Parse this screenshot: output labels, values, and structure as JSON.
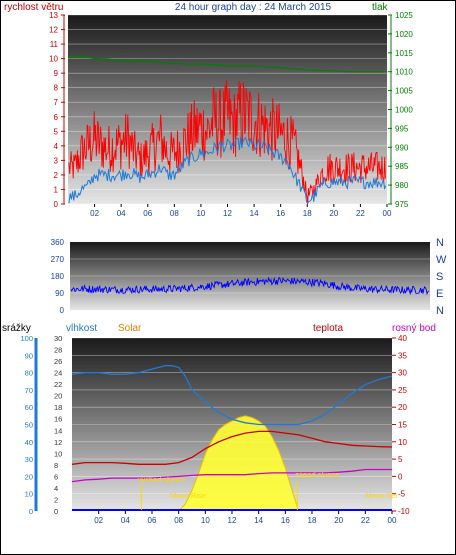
{
  "chart_data": [
    {
      "type": "line",
      "title": "24 hour graph day : 24 March 2015",
      "left_axis_label": "rychlost větru",
      "right_axis_label": "tlak",
      "left_ylim": [
        0,
        13
      ],
      "left_ticks": [
        "0",
        "1",
        "2",
        "3",
        "4",
        "5",
        "6",
        "7",
        "8",
        "9",
        "10",
        "11",
        "12",
        "13"
      ],
      "right_ylim": [
        975,
        1025
      ],
      "right_ticks": [
        "975",
        "980",
        "985",
        "990",
        "995",
        "1000",
        "1005",
        "1010",
        "1015",
        "1020",
        "1025"
      ],
      "x_ticks": [
        "02",
        "04",
        "06",
        "08",
        "10",
        "12",
        "14",
        "16",
        "18",
        "20",
        "22",
        "00"
      ],
      "colors": {
        "gust": "#ff0000",
        "speed": "#1e7ad6",
        "pressure": "#008000",
        "left_axis": "#cc0000",
        "right_axis": "#008000",
        "title": "#1a3fa8"
      },
      "series": [
        {
          "key": "wind_gust",
          "x": [
            0.5,
            1,
            1.5,
            2,
            2.5,
            3,
            3.5,
            4,
            4.5,
            5,
            5.5,
            6,
            6.5,
            7,
            7.5,
            8,
            8.5,
            9,
            9.5,
            10,
            10.5,
            11,
            11.5,
            12,
            12.5,
            13,
            13.5,
            14,
            14.5,
            15,
            15.5,
            16,
            16.5,
            17,
            17.5,
            18,
            18.5,
            19,
            19.5,
            20,
            20.5,
            21,
            21.5,
            22,
            22.5,
            23,
            23.5,
            24
          ],
          "y": [
            2.5,
            3.5,
            4,
            4.5,
            4,
            3.8,
            4,
            4.2,
            4.5,
            3.5,
            3,
            3.5,
            4,
            4.5,
            3.5,
            3.5,
            4,
            4.5,
            5,
            5.3,
            5,
            5.8,
            5.5,
            6,
            5.5,
            6.2,
            6,
            5.8,
            5.5,
            5.2,
            5,
            4.8,
            4.5,
            4,
            2.5,
            0.5,
            1,
            2,
            2.5,
            2.5,
            2.5,
            2.5,
            2.5,
            2.5,
            2.5,
            2.5,
            2.5,
            2.5
          ]
        },
        {
          "key": "wind_speed",
          "x": [
            0.5,
            1,
            1.5,
            2,
            2.5,
            3,
            3.5,
            4,
            4.5,
            5,
            5.5,
            6,
            6.5,
            7,
            7.5,
            8,
            8.5,
            9,
            9.5,
            10,
            10.5,
            11,
            11.5,
            12,
            12.5,
            13,
            13.5,
            14,
            14.5,
            15,
            15.5,
            16,
            16.5,
            17,
            17.5,
            18,
            18.5,
            19,
            19.5,
            20,
            20.5,
            21,
            21.5,
            22,
            22.5,
            23,
            23.5,
            24
          ],
          "y": [
            0.5,
            1,
            1.2,
            2,
            2,
            2,
            2,
            2,
            2.2,
            2,
            1.8,
            2,
            2.2,
            2.5,
            2,
            2,
            2.5,
            3,
            3.2,
            3.5,
            3.5,
            3.8,
            4,
            4,
            4,
            4.2,
            4.2,
            4,
            4,
            3.8,
            3.5,
            3.2,
            3,
            2,
            1.2,
            0.2,
            0.5,
            1.2,
            1.5,
            1.5,
            1.5,
            1.5,
            1.5,
            1.5,
            1.5,
            1.5,
            1.5,
            1.5
          ]
        },
        {
          "key": "pressure",
          "x": [
            0,
            1,
            2,
            3,
            4,
            5,
            6,
            7,
            8,
            9,
            10,
            11,
            12,
            13,
            14,
            15,
            16,
            17,
            18,
            19,
            20,
            21,
            22,
            23,
            24
          ],
          "y": [
            1014,
            1014,
            1013.5,
            1013.3,
            1013,
            1013,
            1012.8,
            1012.5,
            1012.2,
            1012,
            1012,
            1011.8,
            1011.5,
            1011.5,
            1011.5,
            1011.3,
            1011,
            1010.8,
            1010.5,
            1010.3,
            1010.2,
            1010,
            1010,
            1010,
            1010
          ]
        }
      ]
    },
    {
      "type": "scatter",
      "left_ylim": [
        0,
        360
      ],
      "left_ticks": [
        "0",
        "90",
        "180",
        "270",
        "360"
      ],
      "right_labels": [
        "N",
        "W",
        "S",
        "E",
        "N"
      ],
      "x_ticks": [
        "02",
        "04",
        "06",
        "08",
        "10",
        "12",
        "14",
        "16",
        "18",
        "20",
        "22",
        "00"
      ],
      "colors": {
        "direction": "#0000ff",
        "axis": "#1a3fa8"
      },
      "series": [
        {
          "key": "wind_direction",
          "x": [
            0,
            1,
            2,
            3,
            4,
            5,
            6,
            7,
            8,
            9,
            10,
            11,
            12,
            13,
            14,
            15,
            16,
            17,
            18,
            19,
            20,
            21,
            22,
            23,
            24
          ],
          "y": [
            110,
            112,
            110,
            108,
            108,
            110,
            110,
            112,
            118,
            125,
            132,
            140,
            148,
            152,
            155,
            152,
            148,
            140,
            125,
            115,
            110,
            108,
            106,
            106,
            105
          ]
        }
      ]
    },
    {
      "type": "line",
      "legend": [
        "srážky",
        "vlhkost",
        "Solar",
        "teplota",
        "rosný bod"
      ],
      "left_axis_1_ticks": [
        "0",
        "10",
        "20",
        "30",
        "40",
        "50",
        "60",
        "70",
        "80",
        "90",
        "100"
      ],
      "left_axis_2_ticks": [
        "0",
        "2",
        "4",
        "6",
        "8",
        "10",
        "12",
        "14",
        "16",
        "18",
        "20",
        "22",
        "24",
        "26",
        "28",
        "30"
      ],
      "right_ticks": [
        "-10",
        "-5",
        "0",
        "5",
        "10",
        "15",
        "20",
        "25",
        "30",
        "35",
        "40"
      ],
      "left_ylim": [
        0,
        100
      ],
      "right_ylim": [
        -10,
        40
      ],
      "x_ticks": [
        "02",
        "04",
        "06",
        "08",
        "10",
        "12",
        "14",
        "16",
        "18",
        "20",
        "22",
        "00"
      ],
      "annotations": [
        {
          "text": "východ slunce",
          "x": 6.7
        },
        {
          "text": "západ slunce",
          "x": 18.4
        },
        {
          "text": "Moon Rise",
          "x": 8.7
        },
        {
          "text": "Moon Set",
          "x": 23.2
        }
      ],
      "colors": {
        "rain": "#0000ff",
        "humidity": "#1e7ad6",
        "solar": "#e8c000",
        "temperature": "#cc0000",
        "dewpoint": "#cc00cc",
        "sun_fill": "#ffff33"
      },
      "series": [
        {
          "key": "humidity",
          "x": [
            0,
            1,
            2,
            3,
            4,
            5,
            6,
            7,
            7.5,
            8,
            8.5,
            9,
            10,
            11,
            12,
            13,
            14,
            15,
            16,
            17,
            18,
            19,
            20,
            21,
            22,
            23,
            24
          ],
          "y": [
            79,
            80,
            80,
            79,
            79,
            80,
            82,
            84,
            84,
            83,
            78,
            70,
            63,
            57,
            53,
            51,
            50,
            50,
            50,
            50,
            52,
            56,
            62,
            68,
            73,
            76,
            78
          ]
        },
        {
          "key": "temperature",
          "x": [
            0,
            1,
            2,
            3,
            4,
            5,
            6,
            7,
            8,
            9,
            10,
            11,
            12,
            13,
            14,
            15,
            16,
            17,
            18,
            19,
            20,
            21,
            22,
            23,
            24
          ],
          "y": [
            3.5,
            4,
            4,
            4,
            3.8,
            3.5,
            3.5,
            3.5,
            4,
            5.5,
            8,
            10,
            11.5,
            12.5,
            13,
            13,
            12.5,
            12,
            11,
            10,
            9.5,
            9,
            8.8,
            8.6,
            8.5
          ]
        },
        {
          "key": "dewpoint",
          "x": [
            0,
            1,
            2,
            3,
            4,
            5,
            6,
            7,
            8,
            9,
            10,
            11,
            12,
            13,
            14,
            15,
            16,
            17,
            18,
            19,
            20,
            21,
            22,
            23,
            24
          ],
          "y": [
            -1.5,
            -1,
            -0.8,
            -0.5,
            -0.5,
            -0.5,
            -0.5,
            -0.2,
            0,
            0.3,
            0.5,
            0.5,
            0.5,
            0.5,
            0.8,
            1,
            1,
            1,
            1,
            1,
            1.2,
            1.5,
            2,
            2,
            2
          ]
        },
        {
          "key": "solar",
          "x": [
            8,
            8.5,
            9,
            9.5,
            10,
            10.5,
            11,
            11.5,
            12,
            12.5,
            13,
            13.5,
            14,
            14.5,
            15,
            15.5,
            16,
            16.5,
            17
          ],
          "y": [
            0,
            4,
            12,
            22,
            33,
            41,
            47,
            50,
            52,
            54,
            55,
            54,
            52,
            49,
            43,
            35,
            25,
            12,
            0
          ]
        }
      ]
    }
  ]
}
